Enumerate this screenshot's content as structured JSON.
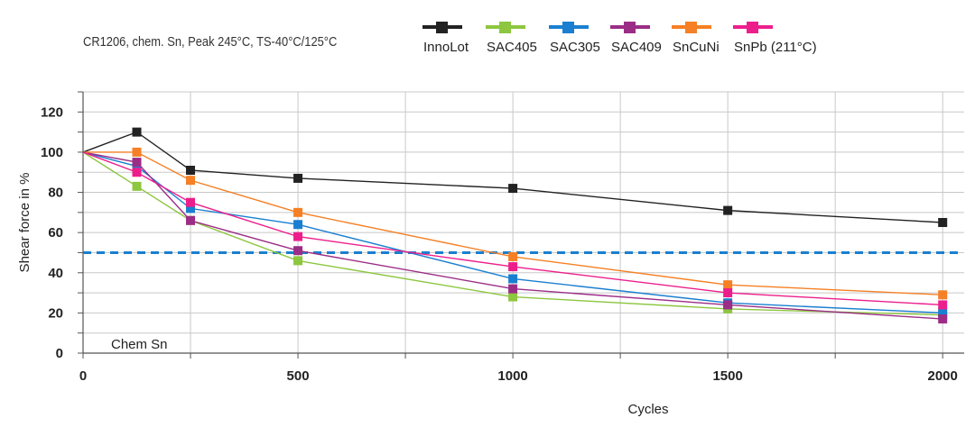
{
  "subtitle": "CR1206, chem. Sn, Peak 245°C, TS-40°C/125°C",
  "chart_data": {
    "type": "line",
    "subtitle": "CR1206, chem. Sn, Peak 245°C, TS-40°C/125°C",
    "xlabel": "Cycles",
    "ylabel": "Shear force in %",
    "xlim": [
      0,
      2050
    ],
    "ylim": [
      0,
      130
    ],
    "x_ticks": [
      0,
      500,
      1000,
      1500,
      2000
    ],
    "y_ticks": [
      0,
      20,
      40,
      60,
      80,
      100,
      120
    ],
    "grid": true,
    "legend_position": "top",
    "annotation": "Chem Sn",
    "reference_line": {
      "y": 50,
      "style": "dashed",
      "color": "#1a7fd0"
    },
    "x": [
      0,
      125,
      250,
      500,
      1000,
      1500,
      2000
    ],
    "series": [
      {
        "name": "InnoLot",
        "color": "#222222",
        "values": [
          100,
          110,
          91,
          87,
          82,
          71,
          65
        ]
      },
      {
        "name": "SAC405",
        "color": "#8dc63f",
        "values": [
          100,
          83,
          66,
          46,
          28,
          22,
          19
        ]
      },
      {
        "name": "SAC305",
        "color": "#1a7fd0",
        "values": [
          100,
          93,
          72,
          64,
          37,
          25,
          20
        ]
      },
      {
        "name": "SAC409",
        "color": "#9b2d86",
        "values": [
          100,
          95,
          66,
          51,
          32,
          24,
          17
        ]
      },
      {
        "name": "SnCuNi",
        "color": "#f58025",
        "values": [
          100,
          100,
          86,
          70,
          48,
          34,
          29
        ]
      },
      {
        "name": "SnPb (211°C)",
        "color": "#ec1e8c",
        "values": [
          100,
          90,
          75,
          58,
          43,
          30,
          24
        ]
      }
    ]
  }
}
